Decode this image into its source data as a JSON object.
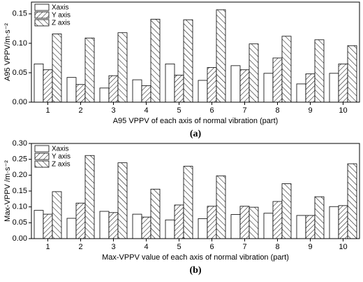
{
  "chart_data": [
    {
      "type": "bar",
      "caption": "(a)",
      "xlabel": "A95 VPPV of each axis of normal vibration (part)",
      "ylabel": "A95 VPPV/m·s⁻²",
      "categories": [
        "1",
        "2",
        "3",
        "4",
        "5",
        "6",
        "7",
        "8",
        "9",
        "10"
      ],
      "series": [
        {
          "name": "Xaxis",
          "color": "#ffffff",
          "hatch": "none",
          "values": [
            0.065,
            0.042,
            0.024,
            0.038,
            0.065,
            0.037,
            0.062,
            0.049,
            0.031,
            0.049
          ]
        },
        {
          "name": "Y axis",
          "color": "#ffffff",
          "hatch": "slash",
          "values": [
            0.055,
            0.03,
            0.045,
            0.028,
            0.046,
            0.059,
            0.055,
            0.075,
            0.048,
            0.065
          ]
        },
        {
          "name": "Z axis",
          "color": "#ffffff",
          "hatch": "backslash",
          "values": [
            0.116,
            0.109,
            0.118,
            0.141,
            0.14,
            0.157,
            0.099,
            0.112,
            0.106,
            0.096
          ]
        }
      ],
      "ylim": [
        0,
        0.17
      ],
      "yticks": [
        {
          "value": 0,
          "label": "0.00"
        },
        {
          "value": 0.05,
          "label": "0.05"
        },
        {
          "value": 0.1,
          "label": "0.10"
        },
        {
          "value": 0.15,
          "label": "0.15"
        }
      ],
      "legend": "upper-left"
    },
    {
      "type": "bar",
      "caption": "(b)",
      "xlabel": "Max-VPPV value of each axis of normal vibration (part)",
      "ylabel": "Max-VPPV /m·s⁻²",
      "categories": [
        "1",
        "2",
        "3",
        "4",
        "5",
        "6",
        "7",
        "8",
        "9",
        "10"
      ],
      "series": [
        {
          "name": "Xaxis",
          "color": "#ffffff",
          "hatch": "none",
          "values": [
            0.089,
            0.064,
            0.086,
            0.077,
            0.059,
            0.063,
            0.076,
            0.08,
            0.073,
            0.101
          ]
        },
        {
          "name": "Y axis",
          "color": "#ffffff",
          "hatch": "slash",
          "values": [
            0.077,
            0.112,
            0.082,
            0.068,
            0.106,
            0.102,
            0.102,
            0.117,
            0.073,
            0.104
          ]
        },
        {
          "name": "Z axis",
          "color": "#ffffff",
          "hatch": "backslash",
          "values": [
            0.148,
            0.262,
            0.239,
            0.156,
            0.228,
            0.198,
            0.099,
            0.173,
            0.132,
            0.236
          ]
        }
      ],
      "ylim": [
        0,
        0.3
      ],
      "yticks": [
        {
          "value": 0,
          "label": "0.00"
        },
        {
          "value": 0.05,
          "label": "0.05"
        },
        {
          "value": 0.1,
          "label": "0.10"
        },
        {
          "value": 0.15,
          "label": "0.15"
        },
        {
          "value": 0.2,
          "label": "0.20"
        },
        {
          "value": 0.25,
          "label": "0.25"
        },
        {
          "value": 0.3,
          "label": "0.30"
        }
      ],
      "legend": "upper-left"
    }
  ]
}
